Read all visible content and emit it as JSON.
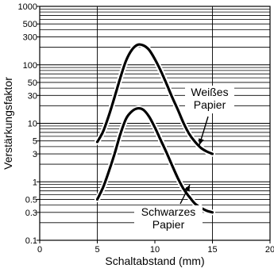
{
  "chart_data": {
    "type": "line",
    "title": "",
    "xlabel": "Schaltabstand (mm)",
    "ylabel": "Verstärkungsfaktor",
    "x_scale": "linear",
    "y_scale": "log",
    "xlim": [
      0,
      20
    ],
    "ylim": [
      0.1,
      1000
    ],
    "x_ticks": [
      0,
      5,
      10,
      15,
      20
    ],
    "x_tick_labels": [
      "0",
      "5",
      "10",
      "15",
      "20"
    ],
    "y_ticks": [
      0.1,
      0.3,
      0.5,
      1,
      3,
      5,
      10,
      30,
      50,
      100,
      300,
      500,
      1000
    ],
    "y_tick_labels": [
      "0.1",
      "0.3",
      "0.5",
      "1",
      "3",
      "5",
      "10",
      "30",
      "50",
      "100",
      "300",
      "500",
      "1000"
    ],
    "grid": "horizontal",
    "series": [
      {
        "name": "Weißes Papier",
        "x": [
          5.0,
          5.5,
          6.0,
          6.5,
          7.0,
          7.5,
          8.0,
          8.5,
          9.0,
          9.5,
          10.0,
          10.5,
          11.0,
          11.5,
          12.0,
          12.5,
          13.0,
          13.5,
          14.0,
          14.5,
          15.0
        ],
        "y": [
          4.8,
          7.2,
          13.5,
          28,
          60,
          118,
          180,
          220,
          215,
          180,
          125,
          80,
          48,
          28,
          17,
          10,
          6.5,
          4.8,
          3.8,
          3.3,
          3.0
        ]
      },
      {
        "name": "Schwarzes Papier",
        "x": [
          5.0,
          5.5,
          6.0,
          6.5,
          7.0,
          7.5,
          8.0,
          8.5,
          9.0,
          9.5,
          10.0,
          10.5,
          11.0,
          11.5,
          12.0,
          12.5,
          13.0,
          13.5,
          14.0,
          14.5,
          15.0
        ],
        "y": [
          0.5,
          0.8,
          1.5,
          3.0,
          6.5,
          12,
          16,
          18,
          17,
          13,
          8.5,
          5.2,
          3.2,
          1.9,
          1.15,
          0.75,
          0.55,
          0.42,
          0.36,
          0.32,
          0.3
        ]
      }
    ],
    "annotations": [
      {
        "lines": [
          "Weißes",
          "Papier"
        ],
        "series": "Weißes Papier"
      },
      {
        "lines": [
          "Schwarzes",
          "Papier"
        ],
        "series": "Schwarzes Papier"
      }
    ]
  }
}
